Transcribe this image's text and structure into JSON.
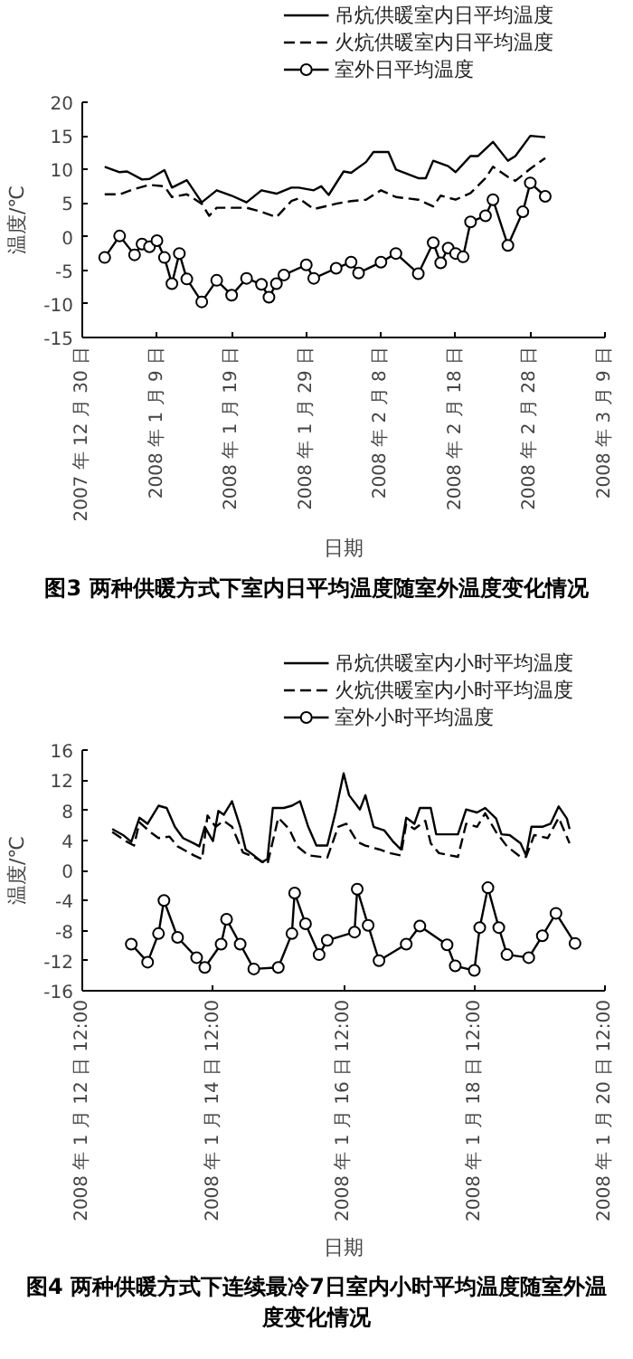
{
  "chart_data": [
    {
      "type": "line",
      "title": "图3 两种供暖方式下室内日平均温度随室外温度变化情况",
      "xlabel": "日期",
      "ylabel": "温度/℃",
      "xlim": [
        "2007-12-30",
        "2008-03-09"
      ],
      "ylim": [
        -15,
        20
      ],
      "yticks": [
        -15,
        -10,
        -5,
        0,
        5,
        10,
        15,
        20
      ],
      "xticks": [
        {
          "value": "2007-12-30",
          "label": "2007 年 12 月 30 日"
        },
        {
          "value": "2008-01-09",
          "label": "2008 年 1 月 9 日"
        },
        {
          "value": "2008-01-19",
          "label": "2008 年 1 月 19 日"
        },
        {
          "value": "2008-01-29",
          "label": "2008 年 1 月 29 日"
        },
        {
          "value": "2008-02-08",
          "label": "2008 年 2 月 8 日"
        },
        {
          "value": "2008-02-18",
          "label": "2008 年 2 月 18 日"
        },
        {
          "value": "2008-02-28",
          "label": "2008 年 2 月 28 日"
        },
        {
          "value": "2008-03-09",
          "label": "2008 年 3 月 9 日"
        }
      ],
      "grid": false,
      "legend": "top",
      "series": [
        {
          "name": "吊炕供暖室内日平均温度",
          "color": "#000000",
          "line_style": "solid",
          "marker": "none",
          "x": [
            "2008-01-02",
            "2008-01-04",
            "2008-01-05",
            "2008-01-07",
            "2008-01-08",
            "2008-01-10",
            "2008-01-11",
            "2008-01-13",
            "2008-01-15",
            "2008-01-17",
            "2008-01-19",
            "2008-01-21",
            "2008-01-23",
            "2008-01-25",
            "2008-01-27",
            "2008-01-28",
            "2008-01-30",
            "2008-01-31",
            "2008-02-01",
            "2008-02-03",
            "2008-02-04",
            "2008-02-06",
            "2008-02-07",
            "2008-02-09",
            "2008-02-10",
            "2008-02-13",
            "2008-02-14",
            "2008-02-15",
            "2008-02-17",
            "2008-02-18",
            "2008-02-20",
            "2008-02-21",
            "2008-02-23",
            "2008-02-25",
            "2008-02-26",
            "2008-02-28",
            "2008-03-01"
          ],
          "values": [
            10.4,
            9.6,
            9.7,
            8.5,
            8.6,
            9.9,
            7.3,
            8.4,
            5.1,
            6.9,
            6.1,
            5.1,
            6.9,
            6.4,
            7.3,
            7.3,
            6.9,
            7.5,
            6.2,
            9.7,
            9.5,
            11.1,
            12.6,
            12.6,
            10.0,
            8.7,
            8.7,
            11.3,
            10.5,
            9.6,
            12.0,
            12.0,
            14.1,
            11.3,
            12.0,
            15.0,
            14.8
          ]
        },
        {
          "name": "火炕供暖室内日平均温度",
          "color": "#000000",
          "line_style": "dashed",
          "marker": "none",
          "x": [
            "2008-01-02",
            "2008-01-04",
            "2008-01-06",
            "2008-01-08",
            "2008-01-10",
            "2008-01-11",
            "2008-01-13",
            "2008-01-15",
            "2008-01-16",
            "2008-01-17",
            "2008-01-19",
            "2008-01-21",
            "2008-01-23",
            "2008-01-25",
            "2008-01-27",
            "2008-01-28",
            "2008-01-30",
            "2008-02-02",
            "2008-02-04",
            "2008-02-06",
            "2008-02-08",
            "2008-02-10",
            "2008-02-13",
            "2008-02-15",
            "2008-02-16",
            "2008-02-18",
            "2008-02-20",
            "2008-02-22",
            "2008-02-23",
            "2008-02-25",
            "2008-02-26",
            "2008-02-28",
            "2008-03-01"
          ],
          "values": [
            6.3,
            6.3,
            7.1,
            7.7,
            7.5,
            5.9,
            6.3,
            4.9,
            3.1,
            4.3,
            4.3,
            4.3,
            3.7,
            2.9,
            5.3,
            5.7,
            4.1,
            4.9,
            5.3,
            5.5,
            6.9,
            5.9,
            5.5,
            4.5,
            6.1,
            5.5,
            6.5,
            8.7,
            10.4,
            8.9,
            8.3,
            10.1,
            11.7
          ]
        },
        {
          "name": "室外日平均温度",
          "color": "#000000",
          "line_style": "solid",
          "marker": "circle",
          "x": [
            "2008-01-02",
            "2008-01-04",
            "2008-01-06",
            "2008-01-07",
            "2008-01-08",
            "2008-01-09",
            "2008-01-10",
            "2008-01-11",
            "2008-01-12",
            "2008-01-13",
            "2008-01-15",
            "2008-01-17",
            "2008-01-19",
            "2008-01-21",
            "2008-01-23",
            "2008-01-24",
            "2008-01-25",
            "2008-01-26",
            "2008-01-29",
            "2008-01-30",
            "2008-02-02",
            "2008-02-04",
            "2008-02-05",
            "2008-02-08",
            "2008-02-10",
            "2008-02-13",
            "2008-02-15",
            "2008-02-16",
            "2008-02-17",
            "2008-02-18",
            "2008-02-19",
            "2008-02-20",
            "2008-02-22",
            "2008-02-23",
            "2008-02-25",
            "2008-02-27",
            "2008-02-28",
            "2008-03-01"
          ],
          "values": [
            -3.1,
            0.1,
            -2.7,
            -1.1,
            -1.5,
            -0.6,
            -3.1,
            -7.0,
            -2.5,
            -6.3,
            -9.7,
            -6.5,
            -8.7,
            -6.2,
            -7.1,
            -9.0,
            -7.0,
            -5.7,
            -4.2,
            -6.2,
            -4.7,
            -3.8,
            -5.4,
            -3.8,
            -2.5,
            -5.5,
            -0.9,
            -3.9,
            -1.7,
            -2.5,
            -3.0,
            2.2,
            3.1,
            5.5,
            -1.3,
            3.7,
            8.0,
            6.0
          ]
        }
      ]
    },
    {
      "type": "line",
      "title": "图4 两种供暖方式下连续最冷7日室内小时平均温度随室外温度变化情况",
      "xlabel": "日期",
      "ylabel": "温度/℃",
      "xlim": [
        "2008-01-12T12:00",
        "2008-01-20T12:00"
      ],
      "ylim": [
        -16,
        16
      ],
      "yticks": [
        -16,
        -12,
        -8,
        -4,
        0,
        4,
        8,
        12,
        16
      ],
      "xticks": [
        {
          "value": "2008-01-12T12:00",
          "label": "2008 年 1 月 12 日 12:00"
        },
        {
          "value": "2008-01-14T12:00",
          "label": "2008 年 1 月 14 日 12:00"
        },
        {
          "value": "2008-01-16T12:00",
          "label": "2008 年 1 月 16 日 12:00"
        },
        {
          "value": "2008-01-18T12:00",
          "label": "2008 年 1 月 18 日 12:00"
        },
        {
          "value": "2008-01-20T12:00",
          "label": "2008 年 1 月 20 日 12:00"
        }
      ],
      "grid": false,
      "legend": "top",
      "series": [
        {
          "name": "吊炕供暖室内小时平均温度",
          "color": "#000000",
          "line_style": "solid",
          "marker": "none",
          "x": [
            "2008-01-12T23:00",
            "2008-01-13T03:00",
            "2008-01-13T06:00",
            "2008-01-13T09:00",
            "2008-01-13T12:00",
            "2008-01-13T16:00",
            "2008-01-13T19:00",
            "2008-01-13T22:00",
            "2008-01-14T01:00",
            "2008-01-14T05:00",
            "2008-01-14T07:00",
            "2008-01-14T09:00",
            "2008-01-14T12:00",
            "2008-01-14T14:00",
            "2008-01-14T16:00",
            "2008-01-14T19:00",
            "2008-01-14T22:00",
            "2008-01-15T00:00",
            "2008-01-15T03:00",
            "2008-01-15T06:00",
            "2008-01-15T08:00",
            "2008-01-15T10:00",
            "2008-01-15T14:00",
            "2008-01-15T17:00",
            "2008-01-15T20:00",
            "2008-01-15T23:00",
            "2008-01-16T02:00",
            "2008-01-16T06:00",
            "2008-01-16T09:00",
            "2008-01-16T12:00",
            "2008-01-16T14:00",
            "2008-01-16T18:00",
            "2008-01-16T20:00",
            "2008-01-16T23:00",
            "2008-01-17T03:00",
            "2008-01-17T06:00",
            "2008-01-17T09:00",
            "2008-01-17T11:00",
            "2008-01-17T14:00",
            "2008-01-17T16:00",
            "2008-01-17T20:00",
            "2008-01-17T22:00",
            "2008-01-18T03:00",
            "2008-01-18T06:00",
            "2008-01-18T09:00",
            "2008-01-18T13:00",
            "2008-01-18T16:00",
            "2008-01-18T20:00",
            "2008-01-18T22:00",
            "2008-01-19T01:00",
            "2008-01-19T05:00",
            "2008-01-19T07:00",
            "2008-01-19T09:00",
            "2008-01-19T13:00",
            "2008-01-19T16:00",
            "2008-01-19T19:00",
            "2008-01-19T22:00",
            "2008-01-19T23:00"
          ],
          "values": [
            5.5,
            4.7,
            3.8,
            7.0,
            6.2,
            8.6,
            8.3,
            5.8,
            4.3,
            3.6,
            3.2,
            5.8,
            3.9,
            7.9,
            7.4,
            9.2,
            5.8,
            2.8,
            2.0,
            1.1,
            1.5,
            8.3,
            8.3,
            8.6,
            9.2,
            5.8,
            3.3,
            3.3,
            7.7,
            12.9,
            10.0,
            8.1,
            10.0,
            5.8,
            5.3,
            3.9,
            2.8,
            7.0,
            6.2,
            8.3,
            8.3,
            4.8,
            4.8,
            4.8,
            8.1,
            7.7,
            8.3,
            6.9,
            4.8,
            4.7,
            3.6,
            2.0,
            5.8,
            5.8,
            6.2,
            8.5,
            6.9,
            5.5
          ]
        },
        {
          "name": "火炕供暖室内小时平均温度",
          "color": "#000000",
          "line_style": "dashed",
          "marker": "none",
          "x": [
            "2008-01-12T23:00",
            "2008-01-13T04:00",
            "2008-01-13T07:00",
            "2008-01-13T09:00",
            "2008-01-13T13:00",
            "2008-01-13T16:00",
            "2008-01-13T20:00",
            "2008-01-13T23:00",
            "2008-01-14T05:00",
            "2008-01-14T08:00",
            "2008-01-14T10:00",
            "2008-01-14T13:00",
            "2008-01-14T16:00",
            "2008-01-14T19:00",
            "2008-01-14T23:00",
            "2008-01-15T03:00",
            "2008-01-15T08:00",
            "2008-01-15T12:00",
            "2008-01-15T16:00",
            "2008-01-15T19:00",
            "2008-01-15T23:00",
            "2008-01-16T06:00",
            "2008-01-16T10:00",
            "2008-01-16T13:00",
            "2008-01-16T17:00",
            "2008-01-16T20:00",
            "2008-01-17T01:00",
            "2008-01-17T05:00",
            "2008-01-17T09:00",
            "2008-01-17T11:00",
            "2008-01-17T14:00",
            "2008-01-17T18:00",
            "2008-01-17T20:00",
            "2008-01-17T23:00",
            "2008-01-18T06:00",
            "2008-01-18T09:00",
            "2008-01-18T13:00",
            "2008-01-18T16:00",
            "2008-01-18T20:00",
            "2008-01-19T00:00",
            "2008-01-19T05:00",
            "2008-01-19T07:00",
            "2008-01-19T10:00",
            "2008-01-19T15:00",
            "2008-01-19T19:00",
            "2008-01-19T23:00"
          ],
          "values": [
            5.1,
            3.9,
            3.3,
            6.4,
            5.1,
            4.3,
            4.5,
            3.2,
            2.0,
            1.5,
            7.3,
            5.8,
            6.6,
            5.8,
            2.4,
            1.8,
            0.8,
            7.0,
            5.5,
            3.2,
            2.0,
            1.7,
            5.8,
            6.2,
            3.8,
            3.3,
            2.8,
            2.3,
            2.0,
            6.2,
            5.5,
            6.6,
            3.6,
            2.3,
            1.8,
            6.2,
            5.8,
            7.6,
            5.1,
            3.2,
            1.8,
            1.8,
            4.7,
            4.3,
            7.0,
            3.6
          ]
        },
        {
          "name": "室外小时平均温度",
          "color": "#000000",
          "line_style": "solid",
          "marker": "circle",
          "x": [
            "2008-01-13T06:00",
            "2008-01-13T12:00",
            "2008-01-13T16:00",
            "2008-01-13T18:00",
            "2008-01-13T23:00",
            "2008-01-14T06:00",
            "2008-01-14T09:00",
            "2008-01-14T15:00",
            "2008-01-14T17:00",
            "2008-01-14T22:00",
            "2008-01-15T03:00",
            "2008-01-15T12:00",
            "2008-01-15T17:00",
            "2008-01-15T18:00",
            "2008-01-15T22:00",
            "2008-01-16T03:00",
            "2008-01-16T06:00",
            "2008-01-16T16:00",
            "2008-01-16T17:00",
            "2008-01-16T21:00",
            "2008-01-17T01:00",
            "2008-01-17T11:00",
            "2008-01-17T16:00",
            "2008-01-18T02:00",
            "2008-01-18T05:00",
            "2008-01-18T12:00",
            "2008-01-18T14:00",
            "2008-01-18T17:00",
            "2008-01-18T21:00",
            "2008-01-19T00:00",
            "2008-01-19T08:00",
            "2008-01-19T13:00",
            "2008-01-19T18:00",
            "2008-01-20T01:00"
          ],
          "values": [
            -9.8,
            -12.2,
            -8.4,
            -4.0,
            -8.9,
            -11.6,
            -12.9,
            -9.8,
            -6.5,
            -9.8,
            -13.1,
            -12.9,
            -8.4,
            -3.0,
            -7.1,
            -11.2,
            -9.3,
            -8.2,
            -2.5,
            -7.3,
            -12.0,
            -9.8,
            -7.4,
            -9.9,
            -12.7,
            -13.3,
            -7.6,
            -2.3,
            -7.6,
            -11.2,
            -11.6,
            -8.7,
            -5.7,
            -9.7
          ]
        }
      ]
    }
  ]
}
